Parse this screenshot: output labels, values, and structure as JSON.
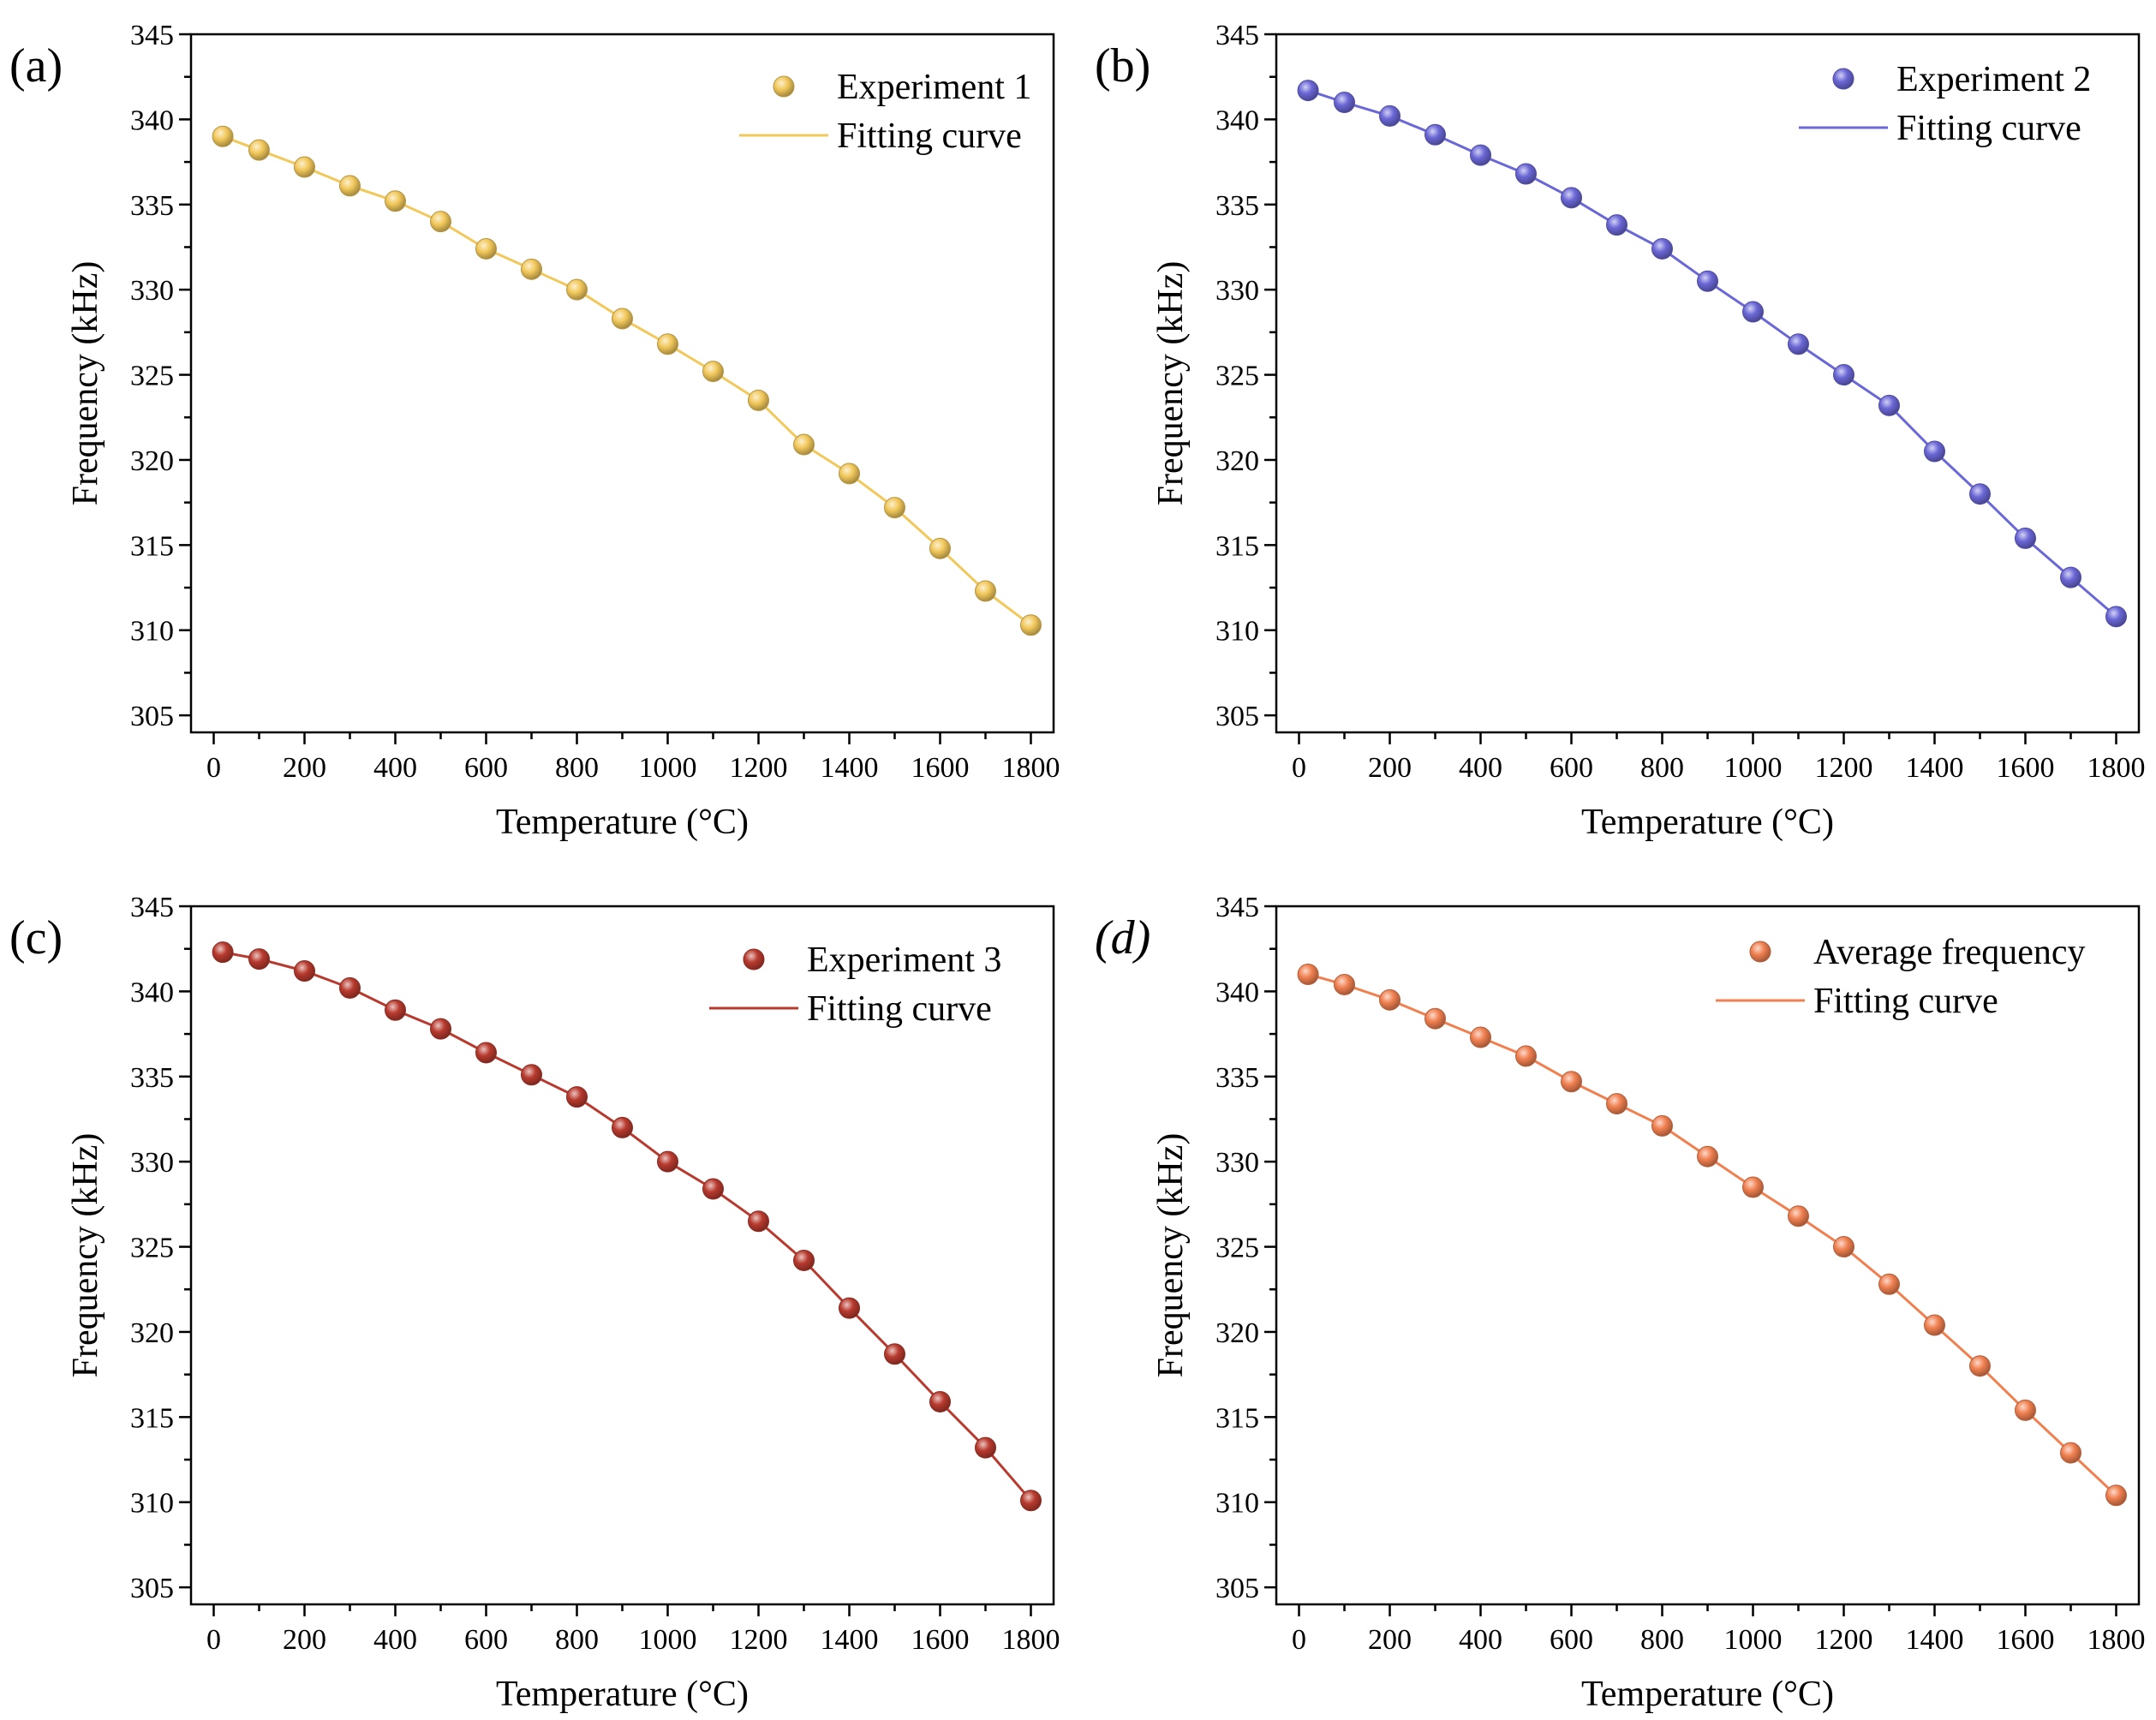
{
  "chart_data": [
    {
      "type": "line",
      "panel_label": "(a)",
      "xlabel": "Temperature (°C)",
      "ylabel": "Frequency (kHz)",
      "xlim": [
        -50,
        1850
      ],
      "ylim": [
        304,
        345
      ],
      "xticks": [
        0,
        200,
        400,
        600,
        800,
        1000,
        1200,
        1400,
        1600,
        1800
      ],
      "yticks": [
        305,
        310,
        315,
        320,
        325,
        330,
        335,
        340,
        345
      ],
      "legend_position": "top-right",
      "color": "#f2c85b",
      "series": [
        {
          "name": "Experiment 1",
          "style": "markers",
          "x": [
            20,
            100,
            200,
            300,
            400,
            500,
            600,
            700,
            800,
            900,
            1000,
            1100,
            1200,
            1300,
            1400,
            1500,
            1600,
            1700,
            1800
          ],
          "y": [
            339.0,
            338.2,
            337.2,
            336.1,
            335.2,
            334.0,
            332.4,
            331.2,
            330.0,
            328.3,
            326.8,
            325.2,
            323.5,
            320.9,
            319.2,
            317.2,
            314.8,
            312.3,
            310.3
          ]
        },
        {
          "name": "Fitting curve",
          "style": "line",
          "x": [
            20,
            100,
            200,
            300,
            400,
            500,
            600,
            700,
            800,
            900,
            1000,
            1100,
            1200,
            1300,
            1400,
            1500,
            1600,
            1700,
            1800
          ],
          "y": [
            339.0,
            338.2,
            337.2,
            336.1,
            335.2,
            334.0,
            332.4,
            331.2,
            330.0,
            328.3,
            326.8,
            325.2,
            323.5,
            320.9,
            319.2,
            317.2,
            314.8,
            312.3,
            310.3
          ]
        }
      ]
    },
    {
      "type": "line",
      "panel_label": "(b)",
      "xlabel": "Temperature (°C)",
      "ylabel": "Frequency (kHz)",
      "xlim": [
        -50,
        1850
      ],
      "ylim": [
        304,
        345
      ],
      "xticks": [
        0,
        200,
        400,
        600,
        800,
        1000,
        1200,
        1400,
        1600,
        1800
      ],
      "yticks": [
        305,
        310,
        315,
        320,
        325,
        330,
        335,
        340,
        345
      ],
      "legend_position": "top-right",
      "color": "#6a67d6",
      "series": [
        {
          "name": "Experiment 2",
          "style": "markers",
          "x": [
            20,
            100,
            200,
            300,
            400,
            500,
            600,
            700,
            800,
            900,
            1000,
            1100,
            1200,
            1300,
            1400,
            1500,
            1600,
            1700,
            1800
          ],
          "y": [
            341.7,
            341.0,
            340.2,
            339.1,
            337.9,
            336.8,
            335.4,
            333.8,
            332.4,
            330.5,
            328.7,
            326.8,
            325.0,
            323.2,
            320.5,
            318.0,
            315.4,
            313.1,
            310.8
          ]
        },
        {
          "name": "Fitting curve",
          "style": "line",
          "x": [
            20,
            100,
            200,
            300,
            400,
            500,
            600,
            700,
            800,
            900,
            1000,
            1100,
            1200,
            1300,
            1400,
            1500,
            1600,
            1700,
            1800
          ],
          "y": [
            341.7,
            341.0,
            340.2,
            339.1,
            337.9,
            336.8,
            335.4,
            333.8,
            332.4,
            330.5,
            328.7,
            326.8,
            325.0,
            323.2,
            320.5,
            318.0,
            315.4,
            313.1,
            310.8
          ]
        }
      ]
    },
    {
      "type": "line",
      "panel_label": "(c)",
      "xlabel": "Temperature (°C)",
      "ylabel": "Frequency (kHz)",
      "xlim": [
        -50,
        1850
      ],
      "ylim": [
        304,
        345
      ],
      "xticks": [
        0,
        200,
        400,
        600,
        800,
        1000,
        1200,
        1400,
        1600,
        1800
      ],
      "yticks": [
        305,
        310,
        315,
        320,
        325,
        330,
        335,
        340,
        345
      ],
      "legend_position": "top-right",
      "color": "#b83a2e",
      "series": [
        {
          "name": "Experiment 3",
          "style": "markers",
          "x": [
            20,
            100,
            200,
            300,
            400,
            500,
            600,
            700,
            800,
            900,
            1000,
            1100,
            1200,
            1300,
            1400,
            1500,
            1600,
            1700,
            1800
          ],
          "y": [
            342.3,
            341.9,
            341.2,
            340.2,
            338.9,
            337.8,
            336.4,
            335.1,
            333.8,
            332.0,
            330.0,
            328.4,
            326.5,
            324.2,
            321.4,
            318.7,
            315.9,
            313.2,
            310.1
          ]
        },
        {
          "name": "Fitting curve",
          "style": "line",
          "x": [
            20,
            100,
            200,
            300,
            400,
            500,
            600,
            700,
            800,
            900,
            1000,
            1100,
            1200,
            1300,
            1400,
            1500,
            1600,
            1700,
            1800
          ],
          "y": [
            342.3,
            341.9,
            341.2,
            340.2,
            338.9,
            337.8,
            336.4,
            335.1,
            333.8,
            332.0,
            330.0,
            328.4,
            326.5,
            324.2,
            321.4,
            318.7,
            315.9,
            313.2,
            310.1
          ]
        }
      ]
    },
    {
      "type": "line",
      "panel_label": "(d)",
      "xlabel": "Temperature (°C)",
      "ylabel": "Frequency (kHz)",
      "xlim": [
        -50,
        1850
      ],
      "ylim": [
        304,
        345
      ],
      "xticks": [
        0,
        200,
        400,
        600,
        800,
        1000,
        1200,
        1400,
        1600,
        1800
      ],
      "yticks": [
        305,
        310,
        315,
        320,
        325,
        330,
        335,
        340,
        345
      ],
      "legend_position": "top-right",
      "color": "#f08050",
      "series": [
        {
          "name": "Average frequency",
          "style": "markers",
          "x": [
            20,
            100,
            200,
            300,
            400,
            500,
            600,
            700,
            800,
            900,
            1000,
            1100,
            1200,
            1300,
            1400,
            1500,
            1600,
            1700,
            1800
          ],
          "y": [
            341.0,
            340.4,
            339.5,
            338.4,
            337.3,
            336.2,
            334.7,
            333.4,
            332.1,
            330.3,
            328.5,
            326.8,
            325.0,
            322.8,
            320.4,
            318.0,
            315.4,
            312.9,
            310.4
          ]
        },
        {
          "name": "Fitting curve",
          "style": "line",
          "x": [
            20,
            100,
            200,
            300,
            400,
            500,
            600,
            700,
            800,
            900,
            1000,
            1100,
            1200,
            1300,
            1400,
            1500,
            1600,
            1700,
            1800
          ],
          "y": [
            341.0,
            340.4,
            339.5,
            338.4,
            337.3,
            336.2,
            334.7,
            333.4,
            332.1,
            330.3,
            328.5,
            326.8,
            325.0,
            322.8,
            320.4,
            318.0,
            315.4,
            312.9,
            310.4
          ]
        }
      ]
    }
  ]
}
